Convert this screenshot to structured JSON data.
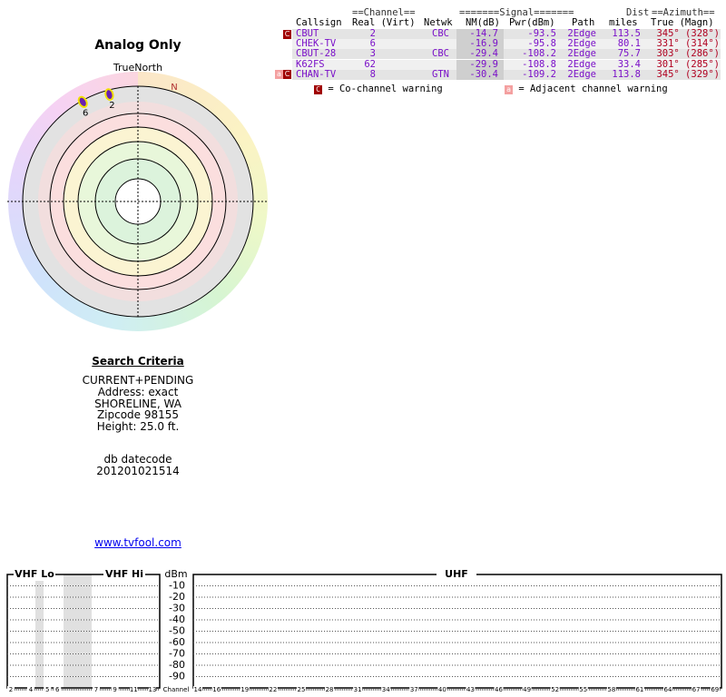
{
  "radar": {
    "title": "Analog Only",
    "north_label": "TrueNorth",
    "magnetic_label": "N",
    "stations": [
      {
        "label": "6",
        "azimuth": 331,
        "nm": -16.9
      },
      {
        "label": "2",
        "azimuth": 345,
        "nm": -14.7
      }
    ]
  },
  "table": {
    "group_headers": [
      "==Channel==",
      "=======Signal=======",
      "Dist",
      "==Azimuth=="
    ],
    "headers": [
      "Callsign",
      "Real (Virt)",
      "Netwk",
      "NM(dB)",
      "Pwr(dBm)",
      "Path",
      "miles",
      "True (Magn)"
    ],
    "rows": [
      {
        "flags": [
          "C"
        ],
        "cells": [
          "CBUT",
          "2",
          "CBC",
          "-14.7",
          "-93.5",
          "2Edge",
          "113.5",
          "345° (328°)"
        ]
      },
      {
        "flags": [],
        "cells": [
          "CHEK-TV",
          "6",
          null,
          "-16.9",
          "-95.8",
          "2Edge",
          "80.1",
          "331° (314°)"
        ]
      },
      {
        "flags": [],
        "cells": [
          "CBUT-28",
          "3",
          "CBC",
          "-29.4",
          "-108.2",
          "2Edge",
          "75.7",
          "303° (286°)"
        ]
      },
      {
        "flags": [],
        "cells": [
          "K62FS",
          "62",
          null,
          "-29.9",
          "-108.8",
          "2Edge",
          "33.4",
          "301° (285°)"
        ]
      },
      {
        "flags": [
          "a",
          "C"
        ],
        "cells": [
          "CHAN-TV",
          "8",
          "GTN",
          "-30.4",
          "-109.2",
          "2Edge",
          "113.8",
          "345° (329°)"
        ]
      }
    ]
  },
  "legend": {
    "co_box": "C",
    "co_text": "= Co-channel warning",
    "adj_box": "a",
    "adj_text": "= Adjacent channel warning"
  },
  "search": {
    "title": "Search Criteria",
    "lines": [
      "CURRENT+PENDING",
      "Address: exact",
      "SHORELINE, WA",
      "Zipcode 98155",
      "Height: 25.0 ft."
    ],
    "datecode_label": "db datecode",
    "datecode": "201201021514"
  },
  "link": "www.tvfool.com",
  "spectrum": {
    "bands": [
      "VHF Lo",
      "VHF Hi",
      "UHF"
    ],
    "unit": "dBm",
    "ylim": [
      0,
      -100
    ],
    "yticks": [
      -10,
      -20,
      -30,
      -40,
      -50,
      -60,
      -70,
      -80,
      -90
    ],
    "axis_label": "Channel",
    "vhf_channels": [
      2,
      4,
      5,
      6,
      7,
      9,
      11,
      13
    ],
    "uhf_channels": [
      14,
      16,
      19,
      22,
      25,
      28,
      31,
      34,
      37,
      40,
      43,
      46,
      49,
      52,
      55,
      58,
      61,
      64,
      67,
      69
    ]
  }
}
